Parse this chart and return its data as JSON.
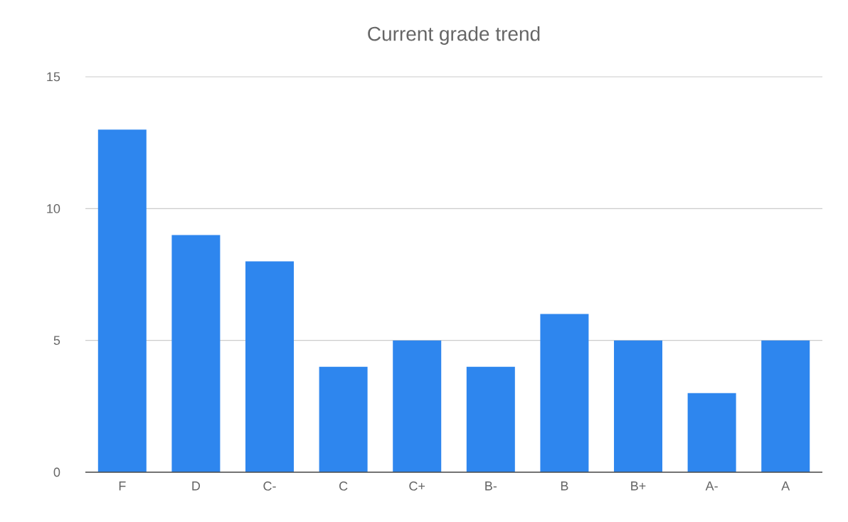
{
  "chart_data": {
    "type": "bar",
    "title": "Current grade trend",
    "categories": [
      "F",
      "D",
      "C-",
      "C",
      "C+",
      "B-",
      "B",
      "B+",
      "A-",
      "A"
    ],
    "values": [
      13,
      9,
      8,
      4,
      5,
      4,
      6,
      5,
      3,
      5
    ],
    "color": "#2e86ee",
    "ylim": [
      0,
      15
    ],
    "yticks": [
      0,
      5,
      10,
      15
    ],
    "grid": "y"
  }
}
